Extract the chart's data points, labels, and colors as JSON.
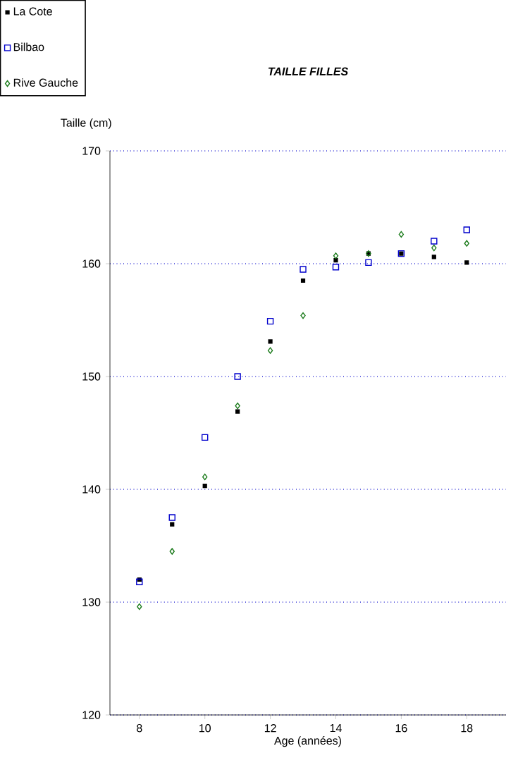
{
  "chart_data": {
    "type": "scatter",
    "title": "TAILLE FILLES",
    "xlabel": "Age (années)",
    "ylabel": "Taille (cm)",
    "x": [
      8,
      9,
      10,
      11,
      12,
      13,
      14,
      15,
      16,
      17,
      18
    ],
    "series": [
      {
        "name": "La Cote",
        "color": "#000000",
        "marker": "square*",
        "values": [
          132.0,
          136.9,
          140.3,
          146.9,
          153.1,
          158.5,
          160.3,
          160.9,
          160.9,
          160.6,
          160.1
        ]
      },
      {
        "name": "Bilbao",
        "color": "#0000cc",
        "marker": "square",
        "values": [
          131.8,
          137.5,
          144.6,
          150.0,
          154.9,
          159.5,
          159.7,
          160.1,
          160.9,
          162.0,
          163.0
        ]
      },
      {
        "name": "Rive Gauche",
        "color": "#1a7a1a",
        "marker": "diamond",
        "values": [
          129.6,
          134.5,
          141.1,
          147.4,
          152.3,
          155.4,
          160.7,
          160.9,
          162.6,
          161.4,
          161.8
        ]
      }
    ],
    "xlim": [
      7.1,
      19.2
    ],
    "ylim": [
      120,
      170
    ],
    "xticks": [
      8,
      10,
      12,
      14,
      16,
      18
    ],
    "yticks": [
      120,
      130,
      140,
      150,
      160,
      170
    ],
    "grid": "y",
    "legend": "top left"
  }
}
